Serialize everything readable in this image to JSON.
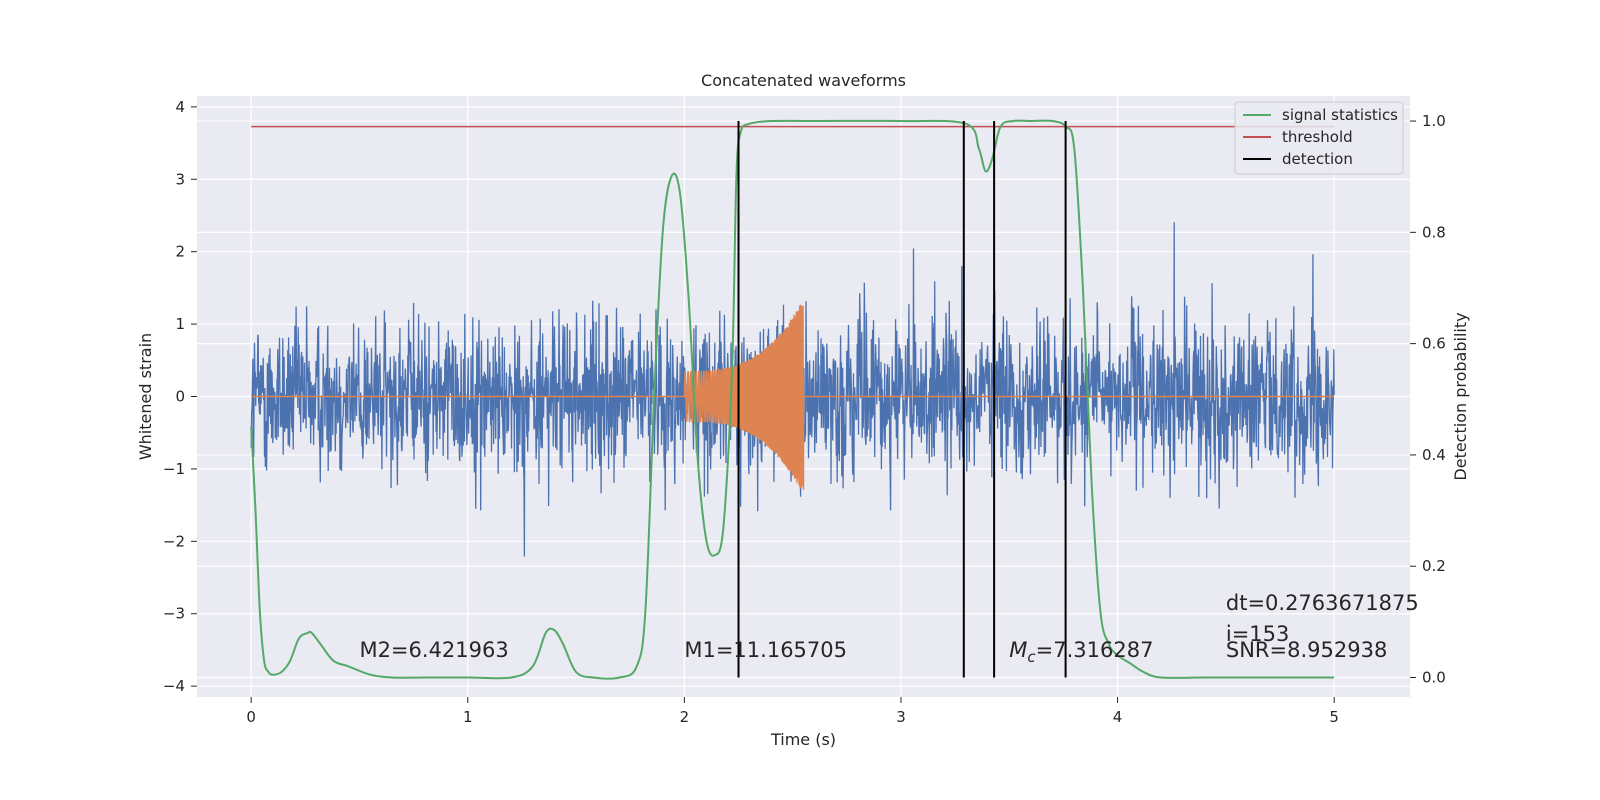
{
  "chart_data": {
    "type": "line",
    "title": "Concatenated waveforms",
    "xlabel": "Time (s)",
    "ylabel_left": "Whitened strain",
    "ylabel_right": "Detection probability",
    "xlim": [
      -0.25,
      5.35
    ],
    "ylim_left": [
      -4.15,
      4.15
    ],
    "ylim_right": [
      -0.035,
      1.045
    ],
    "xticks": [
      0,
      1,
      2,
      3,
      4,
      5
    ],
    "xtick_labels": [
      "0",
      "1",
      "2",
      "3",
      "4",
      "5"
    ],
    "yticks_left": [
      -4,
      -3,
      -2,
      -1,
      0,
      1,
      2,
      3,
      4
    ],
    "ytick_labels_left": [
      "−4",
      "−3",
      "−2",
      "−1",
      "0",
      "1",
      "2",
      "3",
      "4"
    ],
    "yticks_right": [
      0.0,
      0.2,
      0.4,
      0.6,
      0.8,
      1.0
    ],
    "ytick_labels_right": [
      "0.0",
      "0.2",
      "0.4",
      "0.6",
      "0.8",
      "1.0"
    ],
    "grid": true,
    "legend_position": "top-right",
    "series": [
      {
        "key": "strain",
        "color": "#4c72b0",
        "axis": "left",
        "t_range": [
          0,
          5
        ],
        "envelope_abs": 2.5
      },
      {
        "key": "template",
        "color": "#dd8452",
        "axis": "left",
        "t_range": [
          2.0,
          2.55
        ],
        "amplitude": [
          0.35,
          1.35
        ]
      },
      {
        "name": "signal statistics",
        "color": "#55a868",
        "axis": "right",
        "x": [
          0,
          0.02,
          0.04,
          0.06,
          0.08,
          0.1,
          0.14,
          0.18,
          0.22,
          0.26,
          0.28,
          0.32,
          0.38,
          0.45,
          0.55,
          0.65,
          0.8,
          1.0,
          1.2,
          1.3,
          1.36,
          1.4,
          1.44,
          1.5,
          1.58,
          1.7,
          1.78,
          1.82,
          1.86,
          1.9,
          1.94,
          1.98,
          2.02,
          2.06,
          2.1,
          2.14,
          2.18,
          2.22,
          2.24,
          2.26,
          2.3,
          2.4,
          2.6,
          3.0,
          3.3,
          3.36,
          3.39,
          3.42,
          3.46,
          3.52,
          3.6,
          3.7,
          3.76,
          3.8,
          3.84,
          3.88,
          3.92,
          3.96,
          4.0,
          4.06,
          4.12,
          4.2,
          4.4,
          4.6,
          4.8,
          5.0
        ],
        "y": [
          0.45,
          0.3,
          0.12,
          0.03,
          0.01,
          0.005,
          0.01,
          0.03,
          0.07,
          0.08,
          0.08,
          0.06,
          0.03,
          0.02,
          0.005,
          0.0,
          0.0,
          0.0,
          0.0,
          0.02,
          0.08,
          0.085,
          0.06,
          0.01,
          0.0,
          0.0,
          0.02,
          0.12,
          0.5,
          0.8,
          0.9,
          0.87,
          0.68,
          0.4,
          0.25,
          0.22,
          0.27,
          0.55,
          0.9,
          0.98,
          0.995,
          1.0,
          1.0,
          1.0,
          0.995,
          0.95,
          0.91,
          0.93,
          0.99,
          1.0,
          1.0,
          1.0,
          0.99,
          0.95,
          0.7,
          0.35,
          0.12,
          0.06,
          0.04,
          0.025,
          0.01,
          0.0,
          0.0,
          0.0,
          0.0,
          0.0
        ]
      },
      {
        "name": "threshold",
        "color": "#c44e52",
        "axis": "right",
        "x": [
          0,
          5
        ],
        "y": [
          0.99,
          0.99
        ]
      },
      {
        "name": "detection",
        "color": "#000000",
        "axis": "right",
        "vlines_x": [
          2.25,
          3.29,
          3.43,
          3.76
        ],
        "ymin": 0.0,
        "ymax": 1.0
      }
    ],
    "annotations": [
      {
        "text": "M2=6.421963",
        "x": 0.5,
        "y": -3.6
      },
      {
        "text": "M1=11.165705",
        "x": 2.0,
        "y": -3.6
      },
      {
        "text": "7.316287",
        "x": 3.5,
        "y": -3.6,
        "prefix_main": "M",
        "prefix_sub": "c",
        "prefix_eq": "="
      },
      {
        "text": "dt=0.2763671875",
        "x": 4.5,
        "y": -2.95
      },
      {
        "text": " i=153",
        "x": 4.5,
        "y": -3.38
      },
      {
        "text": "SNR=8.952938",
        "x": 4.5,
        "y": -3.6
      }
    ]
  }
}
